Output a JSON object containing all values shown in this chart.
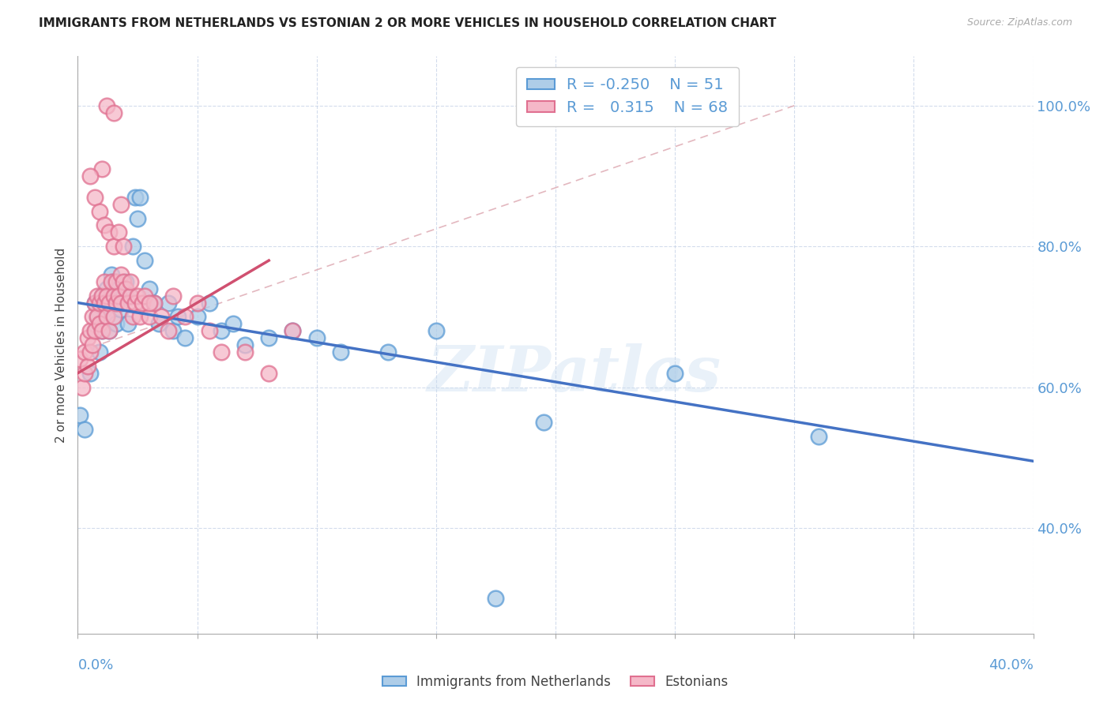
{
  "title": "IMMIGRANTS FROM NETHERLANDS VS ESTONIAN 2 OR MORE VEHICLES IN HOUSEHOLD CORRELATION CHART",
  "source": "Source: ZipAtlas.com",
  "ylabel": "2 or more Vehicles in Household",
  "y_tick_vals": [
    0.4,
    0.6,
    0.8,
    1.0
  ],
  "x_range": [
    0.0,
    0.4
  ],
  "y_range": [
    0.25,
    1.07
  ],
  "legend_r_blue": "-0.250",
  "legend_n_blue": "51",
  "legend_r_pink": "0.315",
  "legend_n_pink": "68",
  "blue_fill": "#aecde8",
  "pink_fill": "#f5b8c8",
  "blue_edge": "#5b9bd5",
  "pink_edge": "#e07090",
  "blue_line_color": "#4472c4",
  "pink_line_color": "#d05070",
  "ref_line_color": "#e0b0b8",
  "watermark": "ZIPatlas",
  "blue_line_x0": 0.0,
  "blue_line_y0": 0.72,
  "blue_line_x1": 0.4,
  "blue_line_y1": 0.495,
  "pink_line_x0": 0.0,
  "pink_line_y0": 0.62,
  "pink_line_x1": 0.08,
  "pink_line_y1": 0.78,
  "ref_line_x0": 0.0,
  "ref_line_y0": 0.65,
  "ref_line_x1": 0.3,
  "ref_line_y1": 1.0,
  "blue_scatter_x": [
    0.001,
    0.003,
    0.005,
    0.007,
    0.007,
    0.008,
    0.009,
    0.01,
    0.01,
    0.011,
    0.012,
    0.012,
    0.013,
    0.013,
    0.014,
    0.015,
    0.016,
    0.016,
    0.017,
    0.018,
    0.019,
    0.02,
    0.021,
    0.022,
    0.023,
    0.024,
    0.025,
    0.026,
    0.028,
    0.03,
    0.032,
    0.034,
    0.038,
    0.04,
    0.042,
    0.045,
    0.05,
    0.055,
    0.06,
    0.065,
    0.07,
    0.08,
    0.09,
    0.1,
    0.11,
    0.13,
    0.15,
    0.195,
    0.25,
    0.31,
    0.175
  ],
  "blue_scatter_y": [
    0.56,
    0.54,
    0.62,
    0.68,
    0.72,
    0.7,
    0.65,
    0.73,
    0.68,
    0.71,
    0.7,
    0.74,
    0.68,
    0.72,
    0.76,
    0.75,
    0.72,
    0.69,
    0.74,
    0.71,
    0.73,
    0.75,
    0.69,
    0.73,
    0.8,
    0.87,
    0.84,
    0.87,
    0.78,
    0.74,
    0.72,
    0.69,
    0.72,
    0.68,
    0.7,
    0.67,
    0.7,
    0.72,
    0.68,
    0.69,
    0.66,
    0.67,
    0.68,
    0.67,
    0.65,
    0.65,
    0.68,
    0.55,
    0.62,
    0.53,
    0.3
  ],
  "pink_scatter_x": [
    0.001,
    0.002,
    0.003,
    0.003,
    0.004,
    0.004,
    0.005,
    0.005,
    0.006,
    0.006,
    0.007,
    0.007,
    0.008,
    0.008,
    0.009,
    0.009,
    0.01,
    0.01,
    0.011,
    0.011,
    0.012,
    0.012,
    0.013,
    0.013,
    0.014,
    0.015,
    0.015,
    0.016,
    0.016,
    0.017,
    0.018,
    0.018,
    0.019,
    0.02,
    0.021,
    0.022,
    0.023,
    0.024,
    0.025,
    0.026,
    0.027,
    0.028,
    0.03,
    0.032,
    0.035,
    0.038,
    0.04,
    0.045,
    0.05,
    0.055,
    0.06,
    0.07,
    0.08,
    0.09,
    0.01,
    0.012,
    0.015,
    0.018,
    0.005,
    0.007,
    0.009,
    0.011,
    0.013,
    0.015,
    0.017,
    0.019,
    0.022,
    0.03
  ],
  "pink_scatter_y": [
    0.64,
    0.6,
    0.62,
    0.65,
    0.67,
    0.63,
    0.68,
    0.65,
    0.7,
    0.66,
    0.72,
    0.68,
    0.7,
    0.73,
    0.69,
    0.72,
    0.68,
    0.73,
    0.72,
    0.75,
    0.7,
    0.73,
    0.68,
    0.72,
    0.75,
    0.7,
    0.73,
    0.75,
    0.72,
    0.73,
    0.76,
    0.72,
    0.75,
    0.74,
    0.72,
    0.73,
    0.7,
    0.72,
    0.73,
    0.7,
    0.72,
    0.73,
    0.7,
    0.72,
    0.7,
    0.68,
    0.73,
    0.7,
    0.72,
    0.68,
    0.65,
    0.65,
    0.62,
    0.68,
    0.91,
    1.0,
    0.99,
    0.86,
    0.9,
    0.87,
    0.85,
    0.83,
    0.82,
    0.8,
    0.82,
    0.8,
    0.75,
    0.72
  ]
}
